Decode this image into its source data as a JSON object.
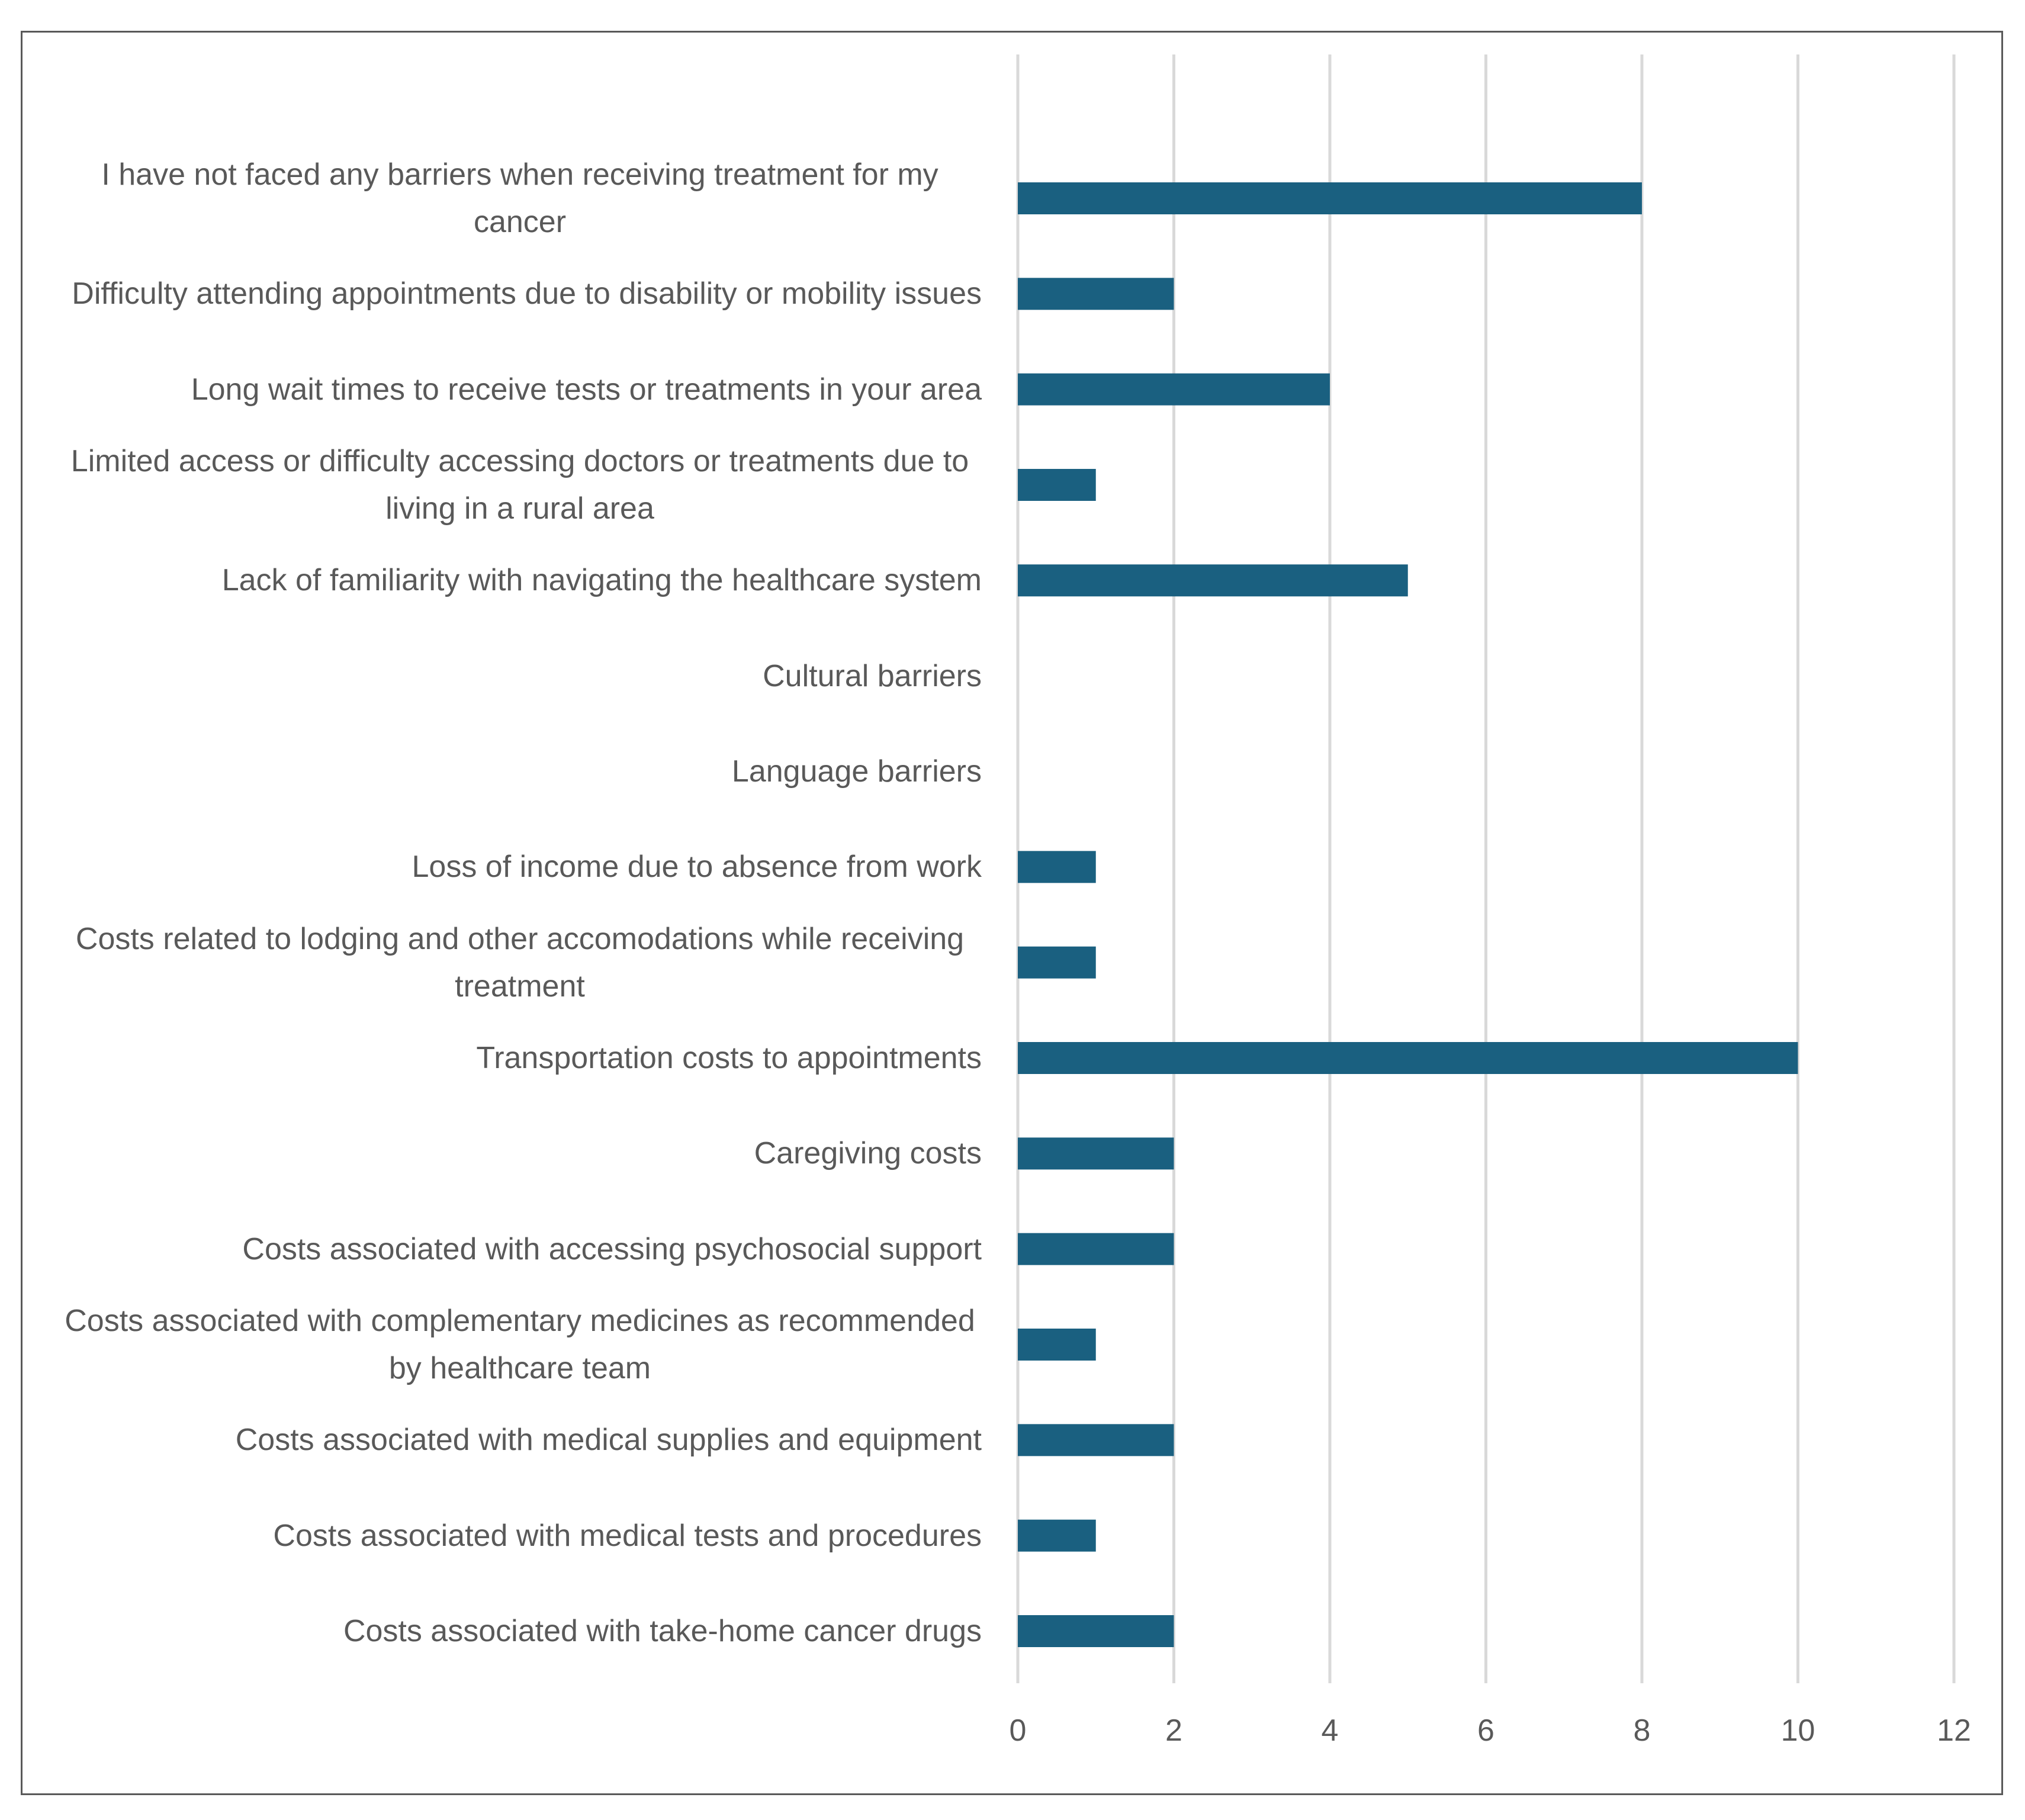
{
  "chart_data": {
    "type": "bar",
    "orientation": "horizontal",
    "categories": [
      "I have not faced any barriers when receiving treatment for my cancer",
      "Difficulty attending appointments due to disability or mobility issues",
      "Long wait times to receive tests or treatments in your area",
      "Limited access or difficulty accessing doctors or treatments due to living in a rural area",
      "Lack of familiarity with navigating the healthcare system",
      "Cultural barriers",
      "Language barriers",
      "Loss of income due to absence from work",
      "Costs related to lodging and other accomodations while receiving treatment",
      "Transportation costs to appointments",
      "Caregiving costs",
      "Costs associated with accessing psychosocial support",
      "Costs associated with complementary medicines as recommended by healthcare team",
      "Costs associated with medical supplies and equipment",
      "Costs associated with medical tests and procedures",
      "Costs associated with take-home cancer drugs"
    ],
    "values": [
      8,
      2,
      4,
      1,
      5,
      0,
      0,
      1,
      1,
      10,
      2,
      2,
      1,
      2,
      1,
      2
    ],
    "xlim": [
      0,
      12
    ],
    "xticks": [
      "0",
      "2",
      "4",
      "6",
      "8",
      "10",
      "12"
    ],
    "grid": "vertical",
    "bar_color": "#1a6080",
    "grid_color": "#d9d9d9",
    "text_color": "#595959"
  }
}
